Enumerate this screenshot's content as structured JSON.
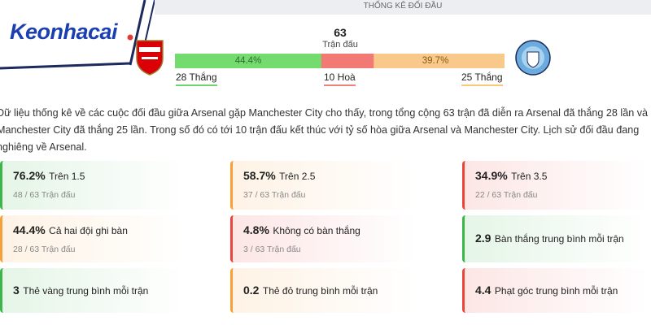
{
  "logo": "Keonhacai",
  "header": "THỐNG KÊ ĐỐI ĐẦU",
  "summary": {
    "total": 63,
    "total_label": "Trận đấu",
    "home_pct": {
      "value": 44.4,
      "label": "44.4%"
    },
    "away_pct": {
      "value": 39.7,
      "label": "39.7%"
    },
    "home_wins": "28 Thắng",
    "draws": "10 Hoà",
    "away_wins": "25 Thắng"
  },
  "description": "Dữ liệu thống kê về các cuộc đối đầu giữa Arsenal gặp Manchester City cho thấy, trong tổng cộng 63 trận đã diễn ra Arsenal đã thắng 28 lần và Manchester City đã thắng 25 lần. Trong số đó có tới 10 trận đấu kết thúc với tỷ số hòa giữa Arsenal và Manchester City. Lịch sử đối đầu đang nghiêng về Arsenal.",
  "cards": [
    {
      "value": "76.2%",
      "label": "Trên 1.5",
      "sub": "48 / 63 Trận đấu",
      "color": "#3cb54a"
    },
    {
      "value": "58.7%",
      "label": "Trên 2.5",
      "sub": "37 / 63 Trận đấu",
      "color": "#f5a13a"
    },
    {
      "value": "34.9%",
      "label": "Trên 3.5",
      "sub": "22 / 63 Trận đấu",
      "color": "#e8453c"
    },
    {
      "value": "44.4%",
      "label": "Cả hai đội ghi bàn",
      "sub": "28 / 63 Trận đấu",
      "color": "#f5a13a"
    },
    {
      "value": "4.8%",
      "label": "Không có bàn thắng",
      "sub": "3 / 63 Trận đấu",
      "color": "#e8453c"
    },
    {
      "value": "2.9",
      "label": "Bàn thắng trung bình mỗi trận",
      "color": "#3cb54a"
    },
    {
      "value": "3",
      "label": "Thẻ vàng trung bình mỗi trận",
      "color": "#3cb54a"
    },
    {
      "value": "0.2",
      "label": "Thẻ đỏ trung bình mỗi trận",
      "color": "#f5a13a"
    },
    {
      "value": "4.4",
      "label": "Phạt góc trung bình mỗi trận",
      "color": "#e8453c"
    }
  ]
}
